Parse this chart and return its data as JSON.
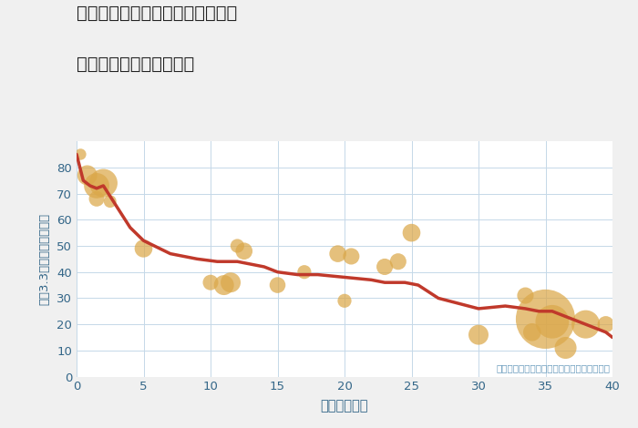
{
  "title_line1": "福岡県北九州市若松区百合野町の",
  "title_line2": "築年数別中古戸建て価格",
  "xlabel": "築年数（年）",
  "ylabel": "坪（3.3㎡）単価（万円）",
  "annotation": "円の大きさは、取引のあった物件面積を示す",
  "bg_color": "#f0f0f0",
  "plot_bg_color": "#ffffff",
  "grid_color": "#c5d8e8",
  "line_color": "#c0392b",
  "bubble_color": "#dba84a",
  "bubble_alpha": 0.72,
  "bubble_edge_color": "none",
  "xlim": [
    0,
    40
  ],
  "ylim": [
    0,
    90
  ],
  "xticks": [
    0,
    5,
    10,
    15,
    20,
    25,
    30,
    35,
    40
  ],
  "yticks": [
    0,
    10,
    20,
    30,
    40,
    50,
    60,
    70,
    80
  ],
  "tick_color": "#336688",
  "label_color": "#336688",
  "title_color": "#222222",
  "annotation_color": "#6699bb",
  "scatter_x": [
    0.3,
    0.8,
    1.5,
    1.5,
    2.0,
    2.5,
    5.0,
    10.0,
    11.0,
    11.5,
    12.0,
    12.5,
    15.0,
    17.0,
    19.5,
    20.0,
    20.5,
    23.0,
    24.0,
    25.0,
    30.0,
    33.5,
    34.0,
    35.0,
    35.5,
    36.5,
    38.0,
    39.5
  ],
  "scatter_y": [
    85,
    77,
    73,
    68,
    74,
    67,
    49,
    36,
    35,
    36,
    50,
    48,
    35,
    40,
    47,
    29,
    46,
    42,
    44,
    55,
    16,
    31,
    17,
    22,
    21,
    11,
    20,
    20
  ],
  "scatter_size": [
    80,
    250,
    400,
    150,
    500,
    100,
    200,
    150,
    250,
    250,
    120,
    180,
    160,
    120,
    180,
    120,
    170,
    170,
    170,
    200,
    250,
    170,
    200,
    2200,
    700,
    300,
    500,
    170
  ],
  "line_x": [
    0,
    0.5,
    1.0,
    1.5,
    2.0,
    3.0,
    4.0,
    5.0,
    7.0,
    9.0,
    10.5,
    12.0,
    14.0,
    15.0,
    16.5,
    18.0,
    20.0,
    22.0,
    23.0,
    24.5,
    25.5,
    27.0,
    28.5,
    30.0,
    32.0,
    33.5,
    34.5,
    35.5,
    37.0,
    38.0,
    39.5,
    40.0
  ],
  "line_y": [
    85,
    75,
    73,
    72,
    73,
    65,
    57,
    52,
    47,
    45,
    44,
    44,
    42,
    40,
    39,
    39,
    38,
    37,
    36,
    36,
    35,
    30,
    28,
    26,
    27,
    26,
    25,
    25,
    22,
    20,
    17,
    15
  ]
}
